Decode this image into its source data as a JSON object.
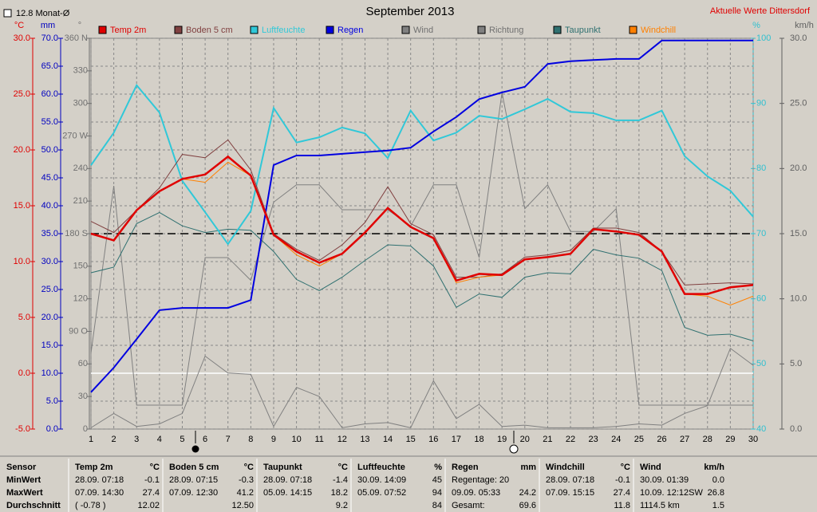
{
  "chart_data": {
    "type": "line",
    "title": "September 2013",
    "subtitle": "Aktuelle Werte  Dittersdorf",
    "monthly_mean": "12.8 Monat-Ø",
    "x": [
      1,
      2,
      3,
      4,
      5,
      6,
      7,
      8,
      9,
      10,
      11,
      12,
      13,
      14,
      15,
      16,
      17,
      18,
      19,
      20,
      21,
      22,
      23,
      24,
      25,
      26,
      27,
      28,
      29,
      30
    ],
    "xlim": [
      1,
      30
    ],
    "xticks": [
      1,
      2,
      3,
      4,
      5,
      6,
      7,
      8,
      9,
      10,
      11,
      12,
      13,
      14,
      15,
      16,
      17,
      18,
      19,
      20,
      21,
      22,
      23,
      24,
      25,
      26,
      27,
      28,
      29,
      30
    ],
    "grid": true,
    "axes": [
      {
        "unit": "°C",
        "color": "#e00000",
        "ylim": [
          -5,
          30
        ],
        "yticks": [
          {
            "value": -5,
            "label": "-5.0"
          },
          {
            "value": 0,
            "label": "0.0"
          },
          {
            "value": 5,
            "label": "5.0"
          },
          {
            "value": 10,
            "label": "10.0"
          },
          {
            "value": 15,
            "label": "15.0"
          },
          {
            "value": 20,
            "label": "20.0"
          },
          {
            "value": 25,
            "label": "25.0"
          },
          {
            "value": 30,
            "label": "30.0"
          }
        ]
      },
      {
        "unit": "mm",
        "color": "#0000c0",
        "ylim": [
          0,
          70
        ],
        "yticks": [
          {
            "value": 0,
            "label": "0.0"
          },
          {
            "value": 5,
            "label": "5.0"
          },
          {
            "value": 10,
            "label": "10.0"
          },
          {
            "value": 15,
            "label": "15.0"
          },
          {
            "value": 20,
            "label": "20.0"
          },
          {
            "value": 25,
            "label": "25.0"
          },
          {
            "value": 30,
            "label": "30.0"
          },
          {
            "value": 35,
            "label": "35.0"
          },
          {
            "value": 40,
            "label": "40.0"
          },
          {
            "value": 45,
            "label": "45.0"
          },
          {
            "value": 50,
            "label": "50.0"
          },
          {
            "value": 55,
            "label": "55.0"
          },
          {
            "value": 60,
            "label": "60.0"
          },
          {
            "value": 65,
            "label": "65.0"
          },
          {
            "value": 70,
            "label": "70.0"
          }
        ]
      },
      {
        "unit": "°",
        "color": "#707070",
        "ylim": [
          0,
          360
        ],
        "yticks": [
          0,
          30,
          60,
          {
            "value": 90,
            "label": "90 O"
          },
          120,
          150,
          {
            "value": 180,
            "label": "180 S"
          },
          210,
          240,
          {
            "value": 270,
            "label": "270 W"
          },
          300,
          330,
          {
            "value": 360,
            "label": "360 N"
          }
        ]
      },
      {
        "unit": "%",
        "color": "#30c0d0",
        "ylim": [
          40,
          100
        ],
        "yticks": [
          40,
          50,
          60,
          70,
          80,
          90,
          100
        ]
      },
      {
        "unit": "km/h",
        "color": "#606060",
        "ylim": [
          0,
          30
        ],
        "yticks": [
          {
            "value": 0,
            "label": "0.0"
          },
          {
            "value": 5,
            "label": "5.0"
          },
          {
            "value": 10,
            "label": "10.0"
          },
          {
            "value": 15,
            "label": "15.0"
          },
          {
            "value": 20,
            "label": "20.0"
          },
          {
            "value": 25,
            "label": "25.0"
          },
          {
            "value": 30,
            "label": "30.0"
          }
        ]
      }
    ],
    "reference_lines": [
      {
        "axis": 0,
        "value": 0,
        "color": "#ffffff",
        "dashed": false
      },
      {
        "axis": 2,
        "value": 180,
        "color": "#000000",
        "dashed": true
      }
    ],
    "series": [
      {
        "name": "Temp 2m",
        "color": "#e00000",
        "axis": 0,
        "values": [
          12.5,
          11.9,
          14.6,
          16.3,
          17.4,
          17.8,
          19.4,
          17.7,
          12.4,
          10.9,
          9.9,
          10.7,
          12.6,
          14.8,
          13.1,
          12.1,
          8.3,
          8.9,
          8.8,
          10.2,
          10.4,
          10.7,
          12.9,
          12.7,
          12.4,
          10.9,
          7.1,
          7.1,
          7.7,
          7.9
        ]
      },
      {
        "name": "Boden 5 cm",
        "color": "#804040",
        "axis": 0,
        "values": [
          13.6,
          12.6,
          14.6,
          16.6,
          19.6,
          19.3,
          20.9,
          18.2,
          12.5,
          11.1,
          10.1,
          11.5,
          13.5,
          16.7,
          13.4,
          12.4,
          8.6,
          8.6,
          8.9,
          10.4,
          10.6,
          11.0,
          13.0,
          13.0,
          12.6,
          10.9,
          7.9,
          8.0,
          8.1,
          8.0
        ]
      },
      {
        "name": "Luftfeuchte",
        "color": "#30c8d8",
        "axis": 3,
        "values": [
          80.5,
          85.5,
          92.8,
          88.6,
          78.1,
          73.3,
          68.4,
          73.5,
          89.3,
          84.0,
          84.8,
          86.3,
          85.4,
          81.6,
          88.9,
          84.3,
          85.5,
          88.1,
          87.6,
          89.1,
          90.7,
          88.7,
          88.5,
          87.4,
          87.4,
          88.9,
          81.9,
          78.8,
          76.6,
          72.6
        ]
      },
      {
        "name": "Regen",
        "color": "#0000e0",
        "axis": 1,
        "values": [
          6.6,
          11.0,
          16.1,
          21.3,
          21.7,
          21.7,
          21.7,
          23.1,
          47.3,
          49.0,
          49.0,
          49.3,
          49.6,
          49.9,
          50.4,
          53.3,
          55.9,
          59.1,
          60.3,
          61.3,
          65.4,
          65.9,
          66.1,
          66.3,
          66.3,
          69.6,
          69.6,
          69.6,
          69.6,
          69.6
        ]
      },
      {
        "name": "Wind",
        "color": "#808080",
        "axis": 4,
        "values": [
          0.1,
          1.2,
          0.2,
          0.4,
          1.2,
          5.6,
          4.3,
          4.2,
          0.2,
          3.2,
          2.5,
          0.1,
          0.4,
          0.5,
          0.1,
          3.7,
          0.8,
          1.9,
          0.2,
          0.3,
          0.1,
          0.1,
          0.1,
          0.2,
          0.4,
          0.3,
          1.2,
          1.8,
          6.2,
          4.9
        ]
      },
      {
        "name": "Richtung",
        "color": "#808080",
        "axis": 2,
        "values": [
          70,
          224,
          22,
          22,
          22,
          158,
          158,
          137,
          209,
          225,
          225,
          202,
          202,
          202,
          187,
          225,
          225,
          158,
          310,
          203,
          225,
          182,
          182,
          203,
          22,
          22,
          22,
          22,
          22,
          22
        ]
      },
      {
        "name": "Taupunkt",
        "color": "#2f7070",
        "axis": 0,
        "values": [
          9.0,
          9.5,
          13.4,
          14.4,
          13.2,
          12.6,
          12.9,
          12.8,
          10.9,
          8.4,
          7.4,
          8.6,
          10.1,
          11.5,
          11.4,
          9.6,
          5.9,
          7.1,
          6.8,
          8.6,
          9.0,
          8.9,
          11.1,
          10.6,
          10.3,
          9.2,
          4.1,
          3.4,
          3.5,
          2.9
        ]
      },
      {
        "name": "Windchill",
        "color": "#ff8000",
        "axis": 0,
        "values": [
          12.5,
          11.9,
          14.6,
          16.3,
          17.4,
          17.1,
          18.9,
          17.7,
          12.4,
          10.6,
          9.6,
          10.7,
          12.6,
          14.8,
          13.1,
          12.1,
          8.1,
          8.6,
          8.8,
          10.2,
          10.4,
          10.7,
          12.9,
          12.7,
          12.4,
          10.9,
          7.1,
          6.9,
          6.1,
          6.9
        ]
      }
    ]
  },
  "stats": {
    "row_labels": [
      "Sensor",
      "MinWert",
      "MaxWert",
      "Durchschnitt"
    ],
    "columns": [
      {
        "name": "Temp 2m",
        "unit": "°C",
        "min": {
          "left": "28.09.  07:18",
          "right": "-0.1"
        },
        "max": {
          "left": "07.09.  14:30",
          "right": "27.4"
        },
        "avg": {
          "left": "( -0.78 )",
          "right": "12.02"
        }
      },
      {
        "name": "Boden 5 cm",
        "unit": "°C",
        "min": {
          "left": "28.09.  07:15",
          "right": "-0.3"
        },
        "max": {
          "left": "07.09.  12:30",
          "right": "41.2"
        },
        "avg": {
          "right": "12.50"
        }
      },
      {
        "name": "Taupunkt",
        "unit": "°C",
        "min": {
          "left": "28.09.  07:18",
          "right": "-1.4"
        },
        "max": {
          "left": "05.09.  14:15",
          "right": "18.2"
        },
        "avg": {
          "right": "9.2"
        }
      },
      {
        "name": "Luftfeuchte",
        "unit": "%",
        "min": {
          "left": "30.09.  14:09",
          "right": "45"
        },
        "max": {
          "left": "05.09.  07:52",
          "right": "94"
        },
        "avg": {
          "right": "84"
        }
      },
      {
        "name": "Regen",
        "unit": "mm",
        "min": {
          "left": "Regentage: 20"
        },
        "max": {
          "left": "09.09.  05:33",
          "right": "24.2"
        },
        "avg": {
          "left": "Gesamt:",
          "right": "69.6"
        }
      },
      {
        "name": "Windchill",
        "unit": "°C",
        "min": {
          "left": "28.09.  07:18",
          "right": "-0.1"
        },
        "max": {
          "left": "07.09.  15:15",
          "right": "27.4"
        },
        "avg": {
          "right": "11.8"
        }
      },
      {
        "name": "Wind",
        "unit": "km/h",
        "min": {
          "left": "30.09.  01:39",
          "right": "0.0"
        },
        "max": {
          "left": "10.09.  12:12SW",
          "right": "26.8"
        },
        "avg": {
          "left": "1114.5 km",
          "right": "1.5"
        }
      }
    ]
  }
}
